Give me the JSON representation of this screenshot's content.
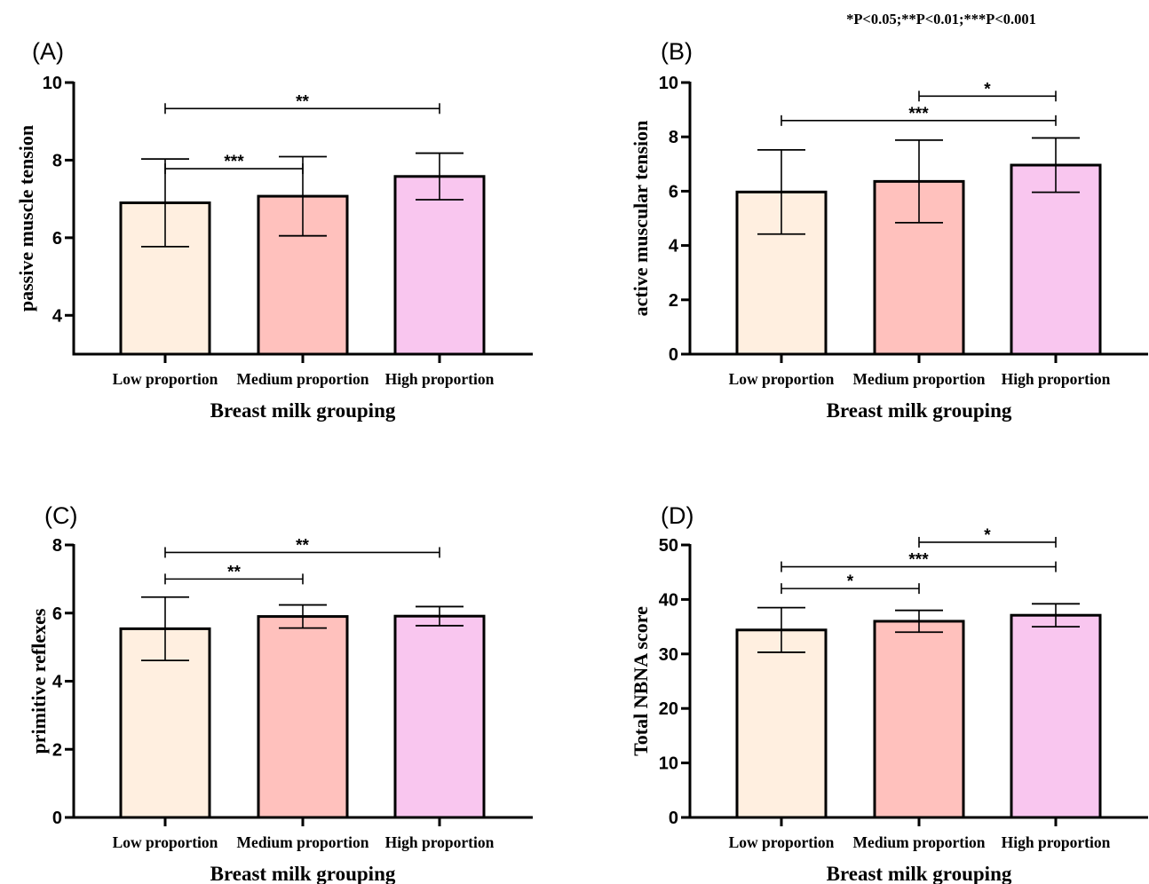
{
  "note": "*P<0.05;**P<0.01;***P<0.001",
  "bar_colors": [
    "#ffefe0",
    "#ffc1bd",
    "#f9c6ef"
  ],
  "chart_data": [
    {
      "type": "bar",
      "panel": "(A)",
      "categories": [
        "Low proportion",
        "Medium proportion",
        "High proportion"
      ],
      "values": [
        6.9,
        7.07,
        7.58
      ],
      "errors": [
        1.13,
        1.02,
        0.6
      ],
      "xlabel": "Breast milk grouping",
      "ylabel": "passive muscle tension",
      "ylim": [
        3,
        10
      ],
      "yticks": [
        4,
        6,
        8,
        10
      ],
      "significance": [
        {
          "from": 0,
          "to": 1,
          "label": "***",
          "level": 7.78
        },
        {
          "from": 0,
          "to": 2,
          "label": "**",
          "level": 9.33
        }
      ]
    },
    {
      "type": "bar",
      "panel": "(B)",
      "categories": [
        "Low proportion",
        "Medium proportion",
        "High proportion"
      ],
      "values": [
        5.97,
        6.36,
        6.96
      ],
      "errors": [
        1.55,
        1.52,
        1.0
      ],
      "xlabel": "Breast milk grouping",
      "ylabel": "active muscular tension",
      "ylim": [
        0,
        10
      ],
      "yticks": [
        0,
        2,
        4,
        6,
        8,
        10
      ],
      "significance": [
        {
          "from": 0,
          "to": 2,
          "label": "***",
          "level": 8.6
        },
        {
          "from": 1,
          "to": 2,
          "label": "*",
          "level": 9.5
        }
      ]
    },
    {
      "type": "bar",
      "panel": "(C)",
      "categories": [
        "Low proportion",
        "Medium proportion",
        "High proportion"
      ],
      "values": [
        5.54,
        5.9,
        5.91
      ],
      "errors": [
        0.93,
        0.34,
        0.28
      ],
      "xlabel": "Breast milk grouping",
      "ylabel": "primitive reflexes",
      "ylim": [
        0,
        8
      ],
      "yticks": [
        0,
        2,
        4,
        6,
        8
      ],
      "significance": [
        {
          "from": 0,
          "to": 1,
          "label": "**",
          "level": 7.0
        },
        {
          "from": 0,
          "to": 2,
          "label": "**",
          "level": 7.78
        }
      ]
    },
    {
      "type": "bar",
      "panel": "(D)",
      "categories": [
        "Low proportion",
        "Medium proportion",
        "High proportion"
      ],
      "values": [
        34.4,
        36.0,
        37.1
      ],
      "errors": [
        4.1,
        2.0,
        2.1
      ],
      "xlabel": "Breast milk grouping",
      "ylabel": "Total NBNA score",
      "ylim": [
        0,
        50
      ],
      "yticks": [
        0,
        10,
        20,
        30,
        40,
        50
      ],
      "significance": [
        {
          "from": 0,
          "to": 1,
          "label": "*",
          "level": 42.0
        },
        {
          "from": 0,
          "to": 2,
          "label": "***",
          "level": 46.0
        },
        {
          "from": 1,
          "to": 2,
          "label": "*",
          "level": 50.5
        }
      ]
    }
  ]
}
